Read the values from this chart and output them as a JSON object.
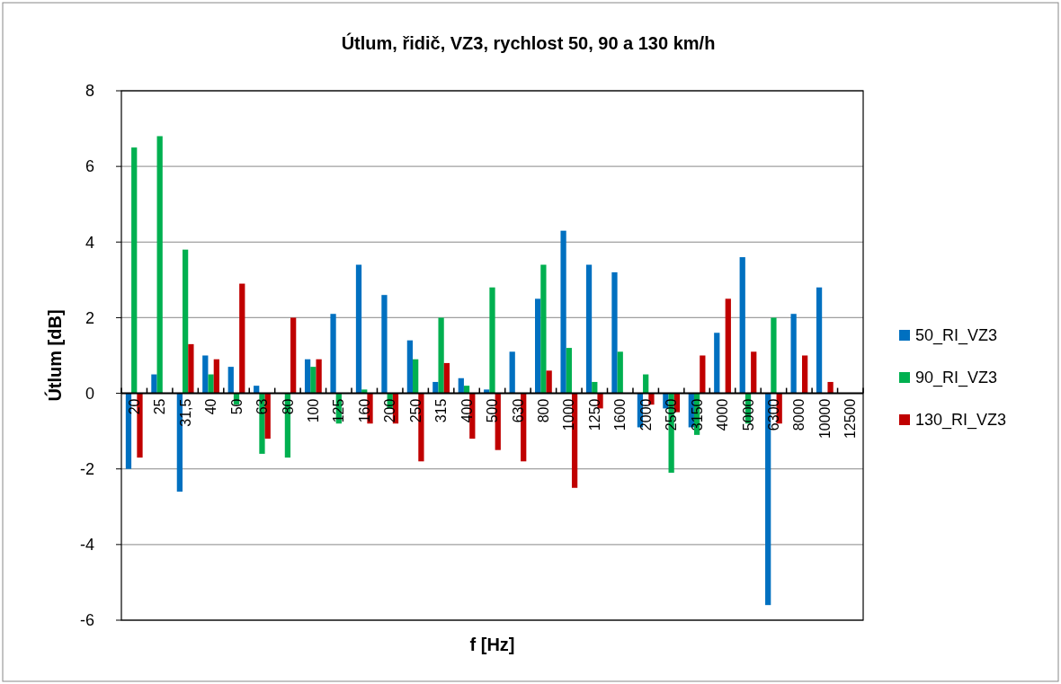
{
  "chart_data": {
    "type": "bar",
    "title": "Útlum, řidič, VZ3, rychlost 50, 90 a 130 km/h",
    "xlabel": "f [Hz]",
    "ylabel": "Útlum [dB]",
    "categories": [
      "20",
      "25",
      "31,5",
      "40",
      "50",
      "63",
      "80",
      "100",
      "125",
      "160",
      "200",
      "250",
      "315",
      "400",
      "500",
      "630",
      "800",
      "1000",
      "1250",
      "1600",
      "2000",
      "2500",
      "3150",
      "4000",
      "5000",
      "6300",
      "8000",
      "10000",
      "12500"
    ],
    "series": [
      {
        "name": "50_RI_VZ3",
        "color": "#0070c0",
        "values": [
          -2.0,
          0.5,
          -2.6,
          1.0,
          0.7,
          0.2,
          null,
          0.9,
          2.1,
          3.4,
          2.6,
          1.4,
          0.3,
          0.4,
          0.1,
          1.1,
          2.5,
          4.3,
          3.4,
          3.2,
          -0.9,
          -0.4,
          -0.9,
          1.6,
          3.6,
          -5.6,
          2.1,
          2.8,
          null
        ]
      },
      {
        "name": "90_RI_VZ3",
        "color": "#00b050",
        "values": [
          6.5,
          6.8,
          3.8,
          0.5,
          -0.3,
          -1.6,
          -1.7,
          0.7,
          -0.8,
          0.1,
          -0.4,
          0.9,
          2.0,
          0.2,
          2.8,
          null,
          3.4,
          1.2,
          0.3,
          1.1,
          0.5,
          -2.1,
          -1.1,
          null,
          -0.8,
          2.0,
          null,
          null,
          null
        ]
      },
      {
        "name": "130_RI_VZ3",
        "color": "#c00000",
        "values": [
          -1.7,
          null,
          1.3,
          0.9,
          2.9,
          -1.2,
          2.0,
          0.9,
          null,
          -0.8,
          -0.8,
          -1.8,
          0.8,
          -1.2,
          -1.5,
          -1.8,
          0.6,
          -2.5,
          -0.4,
          null,
          -0.3,
          -0.5,
          1.0,
          2.5,
          1.1,
          -0.8,
          1.0,
          0.3,
          null
        ]
      }
    ],
    "ylim": [
      -6,
      8
    ],
    "yticks": [
      -6,
      -4,
      -2,
      0,
      2,
      4,
      6,
      8
    ],
    "grid": "y",
    "legend": "right"
  }
}
